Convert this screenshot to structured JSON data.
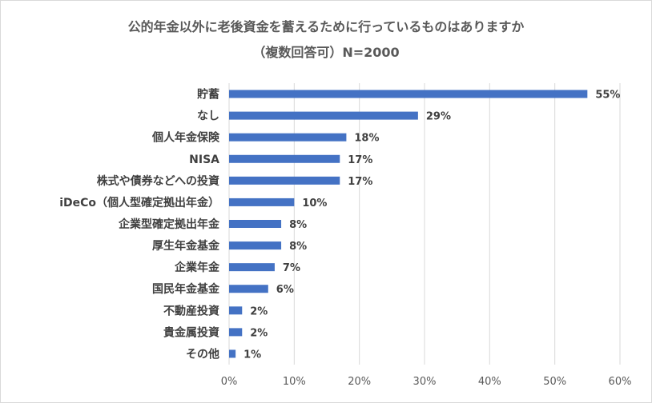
{
  "chart_data": {
    "type": "bar",
    "orientation": "horizontal",
    "title": "公的年金以外に老後資金を蓄えるために行っているものはありますか",
    "subtitle": "（複数回答可）N=2000",
    "categories": [
      "貯蓄",
      "なし",
      "個人年金保険",
      "NISA",
      "株式や債券などへの投資",
      "iDeCo（個人型確定拠出年金）",
      "企業型確定拠出年金",
      "厚生年金基金",
      "企業年金",
      "国民年金基金",
      "不動産投資",
      "貴金属投資",
      "その他"
    ],
    "values": [
      55,
      29,
      18,
      17,
      17,
      10,
      8,
      8,
      7,
      6,
      2,
      2,
      1
    ],
    "value_labels": [
      "55%",
      "29%",
      "18%",
      "17%",
      "17%",
      "10%",
      "8%",
      "8%",
      "7%",
      "6%",
      "2%",
      "2%",
      "1%"
    ],
    "x_ticks": [
      0,
      10,
      20,
      30,
      40,
      50,
      60
    ],
    "x_tick_labels": [
      "0%",
      "10%",
      "20%",
      "30%",
      "40%",
      "50%",
      "60%"
    ],
    "xlim": [
      0,
      60
    ],
    "xlabel": "",
    "ylabel": "",
    "bar_color": "#4472c4",
    "grid": true,
    "legend": "none"
  }
}
